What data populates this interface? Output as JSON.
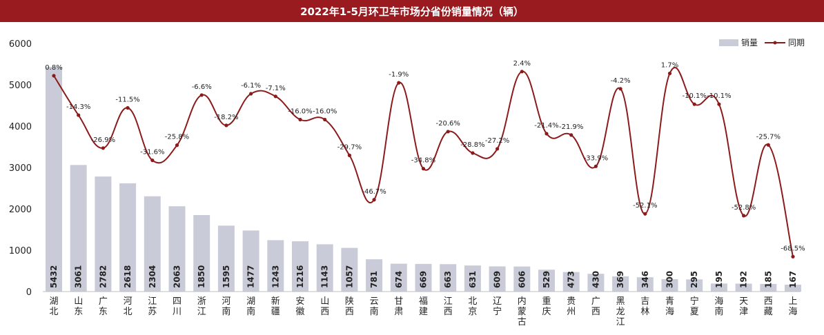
{
  "title": "2022年1-5月环卫车市场分省份销量情况（辆）",
  "colors": {
    "bar": "#c9ccd8",
    "line": "#8b1a1a",
    "title_bg": "#9a1b1f"
  },
  "legend": {
    "bar_label": "销量",
    "line_label": "同期"
  },
  "chart_data": {
    "type": "bar",
    "title": "2022年1-5月环卫车市场分省份销量情况（辆）",
    "categories": [
      "湖北",
      "山东",
      "广东",
      "河北",
      "江苏",
      "四川",
      "浙江",
      "河南",
      "湖南",
      "新疆",
      "安徽",
      "山西",
      "陕西",
      "云南",
      "甘肃",
      "福建",
      "江西",
      "北京",
      "辽宁",
      "内蒙古",
      "重庆",
      "贵州",
      "广西",
      "黑龙江",
      "吉林",
      "青海",
      "宁夏",
      "海南",
      "天津",
      "西藏",
      "上海"
    ],
    "series": [
      {
        "name": "销量",
        "type": "bar",
        "values": [
          5432,
          3061,
          2782,
          2618,
          2304,
          2063,
          1850,
          1595,
          1477,
          1243,
          1216,
          1143,
          1057,
          781,
          674,
          669,
          663,
          631,
          609,
          606,
          529,
          473,
          430,
          369,
          346,
          300,
          295,
          195,
          192,
          185,
          167
        ]
      },
      {
        "name": "同期",
        "type": "line",
        "values": [
          0.8,
          -14.3,
          -26.9,
          -11.5,
          -31.6,
          -25.8,
          -6.6,
          -18.2,
          -6.1,
          -7.1,
          -16.0,
          -16.0,
          -29.7,
          -46.7,
          -1.9,
          -34.8,
          -20.6,
          -28.8,
          -27.2,
          2.4,
          -21.4,
          -21.9,
          -33.9,
          -4.2,
          -52.1,
          1.7,
          -10.1,
          -10.1,
          -52.8,
          -25.7,
          -68.5
        ],
        "labels": [
          "0.8%",
          "-14.3%",
          "-26.9%",
          "-11.5%",
          "-31.6%",
          "-25.8%",
          "-6.6%",
          "-18.2%",
          "-6.1%",
          "-7.1%",
          "-16.0%",
          "-16.0%",
          "-29.7%",
          "-46.7%",
          "-1.9%",
          "-34.8%",
          "-20.6%",
          "-28.8%",
          "-27.2%",
          "2.4%",
          "-21.4%",
          "-21.9%",
          "-33.9%",
          "-4.2%",
          "-52.1%",
          "1.7%",
          "-10.1%",
          "-10.1%",
          "-52.8%",
          "-25.7%",
          "-68.5%"
        ]
      }
    ],
    "yticks": [
      0,
      1000,
      2000,
      3000,
      4000,
      5000,
      6000
    ],
    "ylim": [
      0,
      6000
    ],
    "legend_position": "top-right",
    "grid": false
  }
}
